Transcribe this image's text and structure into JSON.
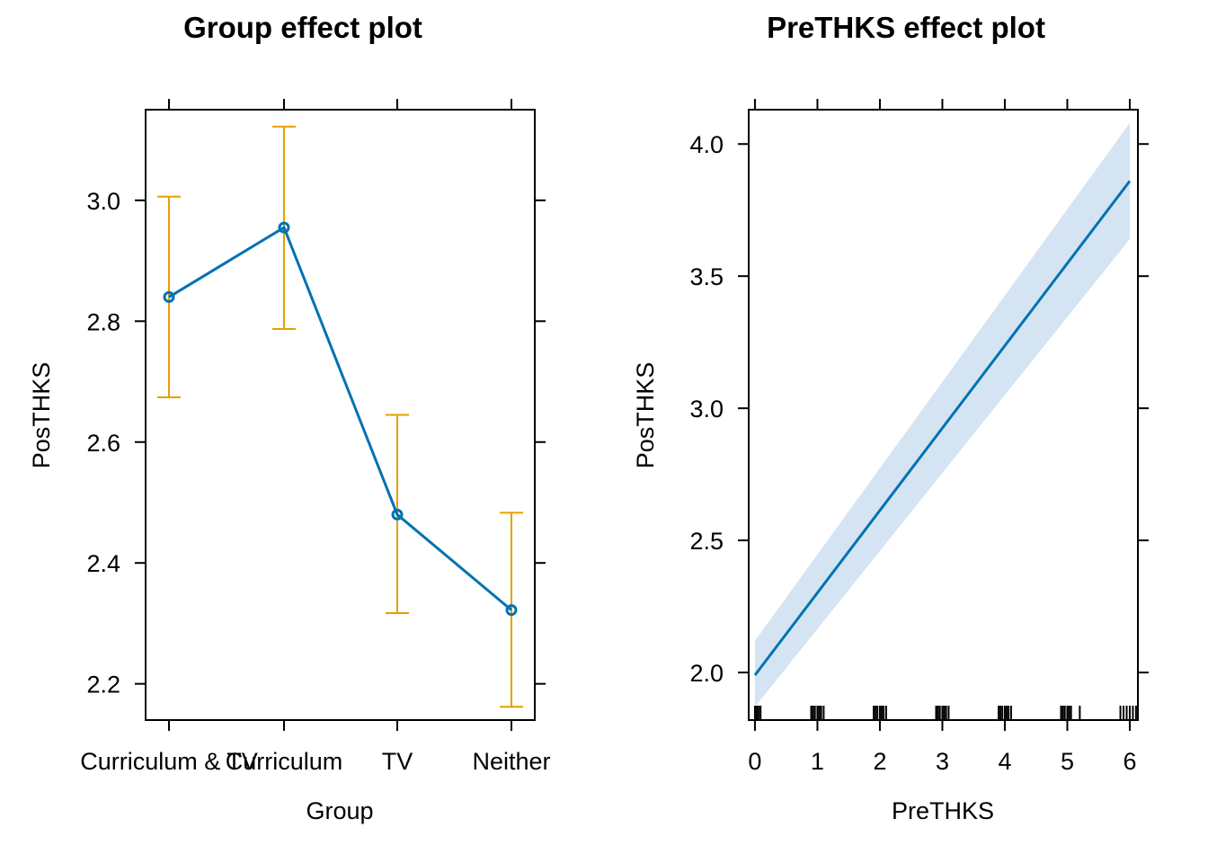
{
  "chart_data": [
    {
      "type": "line",
      "title": "Group effect plot",
      "xlabel": "Group",
      "ylabel": "PosTHKS",
      "categories": [
        "Curriculum & TV",
        "Curriculum",
        "TV",
        "Neither"
      ],
      "series": [
        {
          "values": [
            2.84,
            2.955,
            2.48,
            2.322
          ],
          "lower": [
            2.674,
            2.787,
            2.317,
            2.162
          ],
          "upper": [
            3.006,
            3.122,
            2.645,
            2.483
          ],
          "color": "#0072B2",
          "ci_color": "#E69F00"
        }
      ],
      "ylim": [
        2.14,
        3.15
      ],
      "yticks": [
        2.2,
        2.4,
        2.6,
        2.8,
        3.0
      ],
      "ytick_labels": [
        "2.2",
        "2.4",
        "2.6",
        "2.8",
        "3.0"
      ]
    },
    {
      "type": "line",
      "title": "PreTHKS effect plot",
      "xlabel": "PreTHKS",
      "ylabel": "PosTHKS",
      "x": [
        0,
        6
      ],
      "series": [
        {
          "values": [
            1.99,
            3.86
          ],
          "lower": [
            1.87,
            3.64
          ],
          "upper": [
            2.12,
            4.08
          ],
          "color": "#0072B2",
          "band_color": "#D4E4F3"
        }
      ],
      "xlim": [
        -0.1,
        6.13
      ],
      "ylim": [
        1.82,
        4.13
      ],
      "xticks": [
        0,
        1,
        2,
        3,
        4,
        5,
        6
      ],
      "xtick_labels": [
        "0",
        "1",
        "2",
        "3",
        "4",
        "5",
        "6"
      ],
      "yticks": [
        2.0,
        2.5,
        3.0,
        3.5,
        4.0
      ],
      "ytick_labels": [
        "2.0",
        "2.5",
        "3.0",
        "3.5",
        "4.0"
      ],
      "rug": [
        0,
        0.03,
        0.06,
        0.09,
        0.9,
        0.93,
        0.96,
        1,
        1.03,
        1.06,
        1.1,
        1.9,
        1.93,
        1.96,
        2,
        2.03,
        2.06,
        2.1,
        2.9,
        2.93,
        2.96,
        3,
        3.03,
        3.06,
        3.1,
        3.9,
        3.93,
        3.96,
        4,
        4.03,
        4.06,
        4.1,
        4.9,
        4.93,
        4.96,
        5,
        5.03,
        5.06,
        5.2,
        5.85,
        5.9,
        5.95,
        6,
        6.05,
        6.1
      ]
    }
  ]
}
